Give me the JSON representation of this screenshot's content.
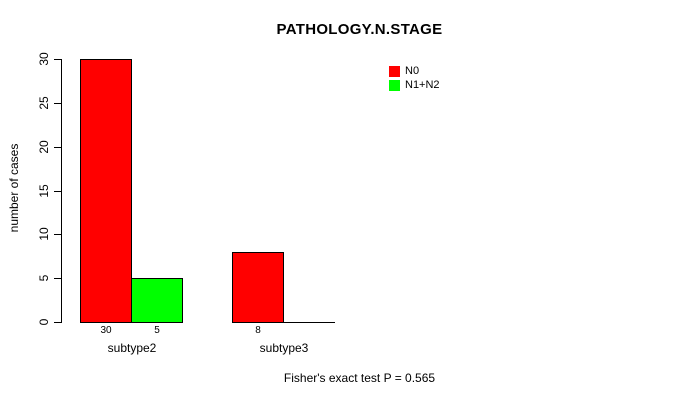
{
  "chart_data": {
    "type": "bar",
    "title": "PATHOLOGY.N.STAGE",
    "xlabel": "",
    "ylabel": "number of cases",
    "categories": [
      "subtype2",
      "subtype3"
    ],
    "series": [
      {
        "name": "N0",
        "color": "#ff0000",
        "values": [
          30,
          8
        ]
      },
      {
        "name": "N1+N2",
        "color": "#00ff00",
        "values": [
          5,
          0
        ]
      }
    ],
    "bar_value_labels": [
      [
        "30",
        "5"
      ],
      [
        "8",
        ""
      ]
    ],
    "yticks": [
      "0",
      "5",
      "10",
      "15",
      "20",
      "25",
      "30"
    ],
    "ylim": [
      0,
      30
    ],
    "grid": false,
    "legend_position": "top-right",
    "annotation": "Fisher's exact test P = 0.565"
  },
  "legend": {
    "items": [
      {
        "label": "N0",
        "color": "#ff0000"
      },
      {
        "label": "N1+N2",
        "color": "#00ff00"
      }
    ]
  },
  "footer": {
    "note": "Fisher's exact test P = 0.565"
  }
}
